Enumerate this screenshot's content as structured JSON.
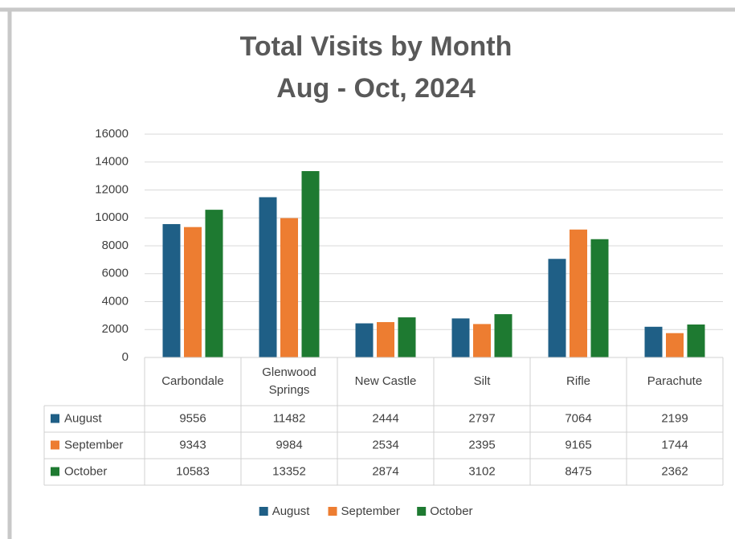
{
  "chart_data": {
    "type": "bar",
    "title": "Total Visits by Month",
    "subtitle": "Aug - Oct, 2024",
    "categories": [
      "Carbondale",
      "Glenwood Springs",
      "New Castle",
      "Silt",
      "Rifle",
      "Parachute"
    ],
    "series": [
      {
        "name": "August",
        "color": "#1f5f86",
        "values": [
          9556,
          11482,
          2444,
          2797,
          7064,
          2199
        ]
      },
      {
        "name": "September",
        "color": "#ed7d31",
        "values": [
          9343,
          9984,
          2534,
          2395,
          9165,
          1744
        ]
      },
      {
        "name": "October",
        "color": "#1e7a31",
        "values": [
          10583,
          13352,
          2874,
          3102,
          8475,
          2362
        ]
      }
    ],
    "ylim": [
      0,
      16000
    ],
    "yticks": [
      0,
      2000,
      4000,
      6000,
      8000,
      10000,
      12000,
      14000,
      16000
    ],
    "grid": true,
    "legend": "bottom",
    "data_table": true
  }
}
